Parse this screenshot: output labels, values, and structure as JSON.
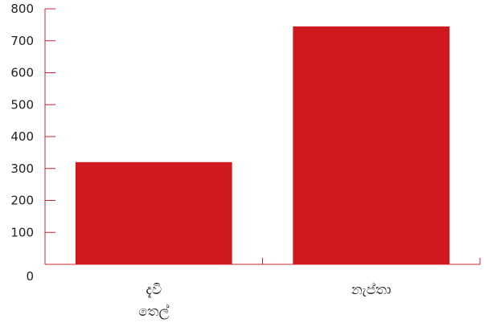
{
  "chart_data": {
    "type": "bar",
    "title": "",
    "xlabel": "",
    "ylabel": "",
    "categories": [
      "දැවි තෙල්",
      "නැප්තා"
    ],
    "category_lines": [
      [
        "දැවි",
        "තෙල්"
      ],
      [
        "නැප්තා"
      ]
    ],
    "values": [
      320,
      745
    ],
    "ylim": [
      0,
      800
    ],
    "yticks": [
      0,
      100,
      200,
      300,
      400,
      500,
      600,
      700,
      800
    ],
    "grid": false,
    "legend": "none",
    "colors": {
      "bar": "#d0191e",
      "axis": "#cc2233",
      "text": "#222222"
    }
  }
}
